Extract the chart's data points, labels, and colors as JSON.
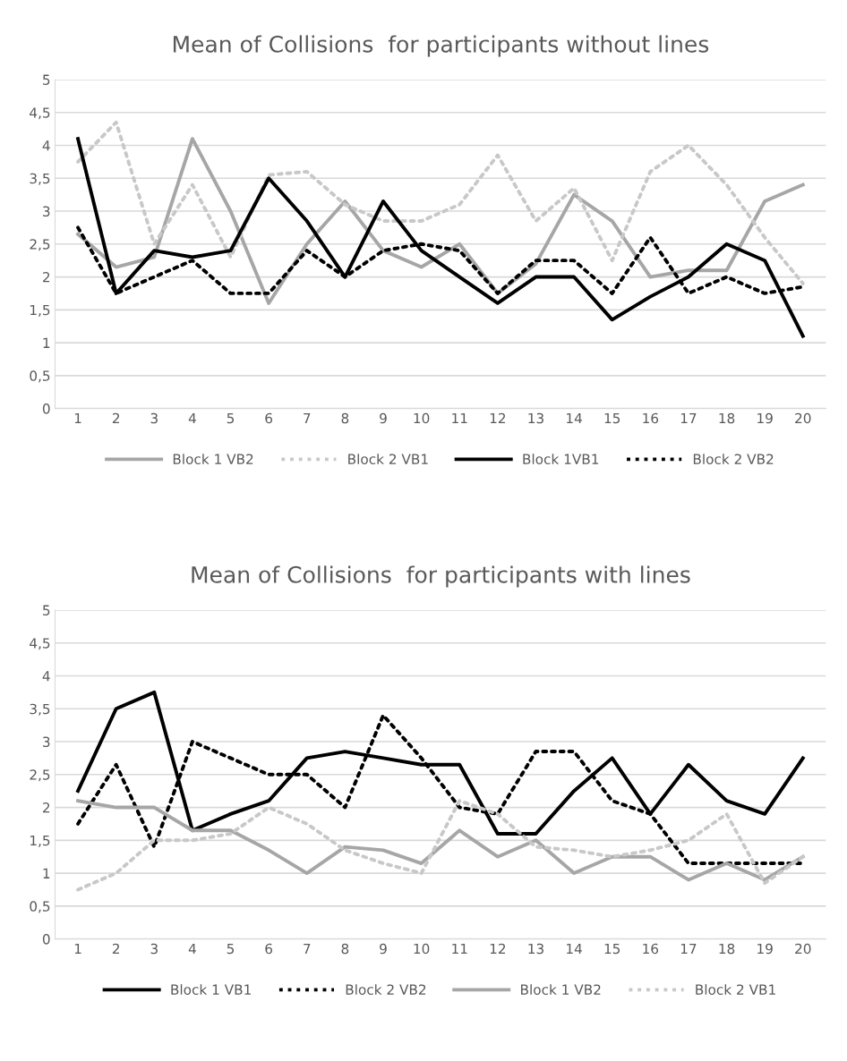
{
  "chart_data": [
    {
      "type": "line",
      "title": "Mean of Collisions  for participants without lines",
      "categories": [
        "1",
        "2",
        "3",
        "4",
        "5",
        "6",
        "7",
        "8",
        "9",
        "10",
        "11",
        "12",
        "13",
        "14",
        "15",
        "16",
        "17",
        "18",
        "19",
        "20"
      ],
      "series": [
        {
          "name": "Block 1 VB2",
          "color": "#a6a6a6",
          "line_style": "solid",
          "values": [
            2.65,
            2.15,
            2.3,
            4.1,
            3.0,
            1.6,
            2.5,
            3.15,
            2.4,
            2.15,
            2.5,
            1.75,
            2.2,
            3.25,
            2.85,
            2.0,
            2.1,
            2.1,
            3.15,
            3.4
          ]
        },
        {
          "name": "Block 2 VB1",
          "color": "#c8c8c8",
          "line_style": "dotted",
          "values": [
            3.75,
            4.35,
            2.5,
            3.4,
            2.3,
            3.55,
            3.6,
            3.1,
            2.85,
            2.85,
            3.1,
            3.85,
            2.85,
            3.35,
            2.25,
            3.6,
            4.0,
            3.4,
            2.6,
            1.9
          ]
        },
        {
          "name": "Block 1VB1",
          "color": "#000000",
          "line_style": "solid",
          "values": [
            4.1,
            1.75,
            2.4,
            2.3,
            2.4,
            3.5,
            2.85,
            2.0,
            3.15,
            2.4,
            2.0,
            1.6,
            2.0,
            2.0,
            1.35,
            1.7,
            2.0,
            2.5,
            2.25,
            1.1
          ]
        },
        {
          "name": "Block 2 VB2",
          "color": "#000000",
          "line_style": "dotted",
          "values": [
            2.75,
            1.75,
            2.0,
            2.25,
            1.75,
            1.75,
            2.4,
            2.0,
            2.4,
            2.5,
            2.4,
            1.75,
            2.25,
            2.25,
            1.75,
            2.6,
            1.75,
            2.0,
            1.75,
            1.85
          ]
        }
      ],
      "ylim": [
        0,
        5
      ],
      "yticks": [
        0,
        {
          "value": 0.5,
          "label": "0,5"
        },
        1,
        {
          "value": 1.5,
          "label": "1,5"
        },
        2,
        {
          "value": 2.5,
          "label": "2,5"
        },
        3,
        {
          "value": 3.5,
          "label": "3,5"
        },
        4,
        {
          "value": 4.5,
          "label": "4,5"
        },
        5
      ],
      "grid": "y",
      "legend": "bottom",
      "marker": "none"
    },
    {
      "type": "line",
      "title": "Mean of Collisions  for participants with lines",
      "categories": [
        "1",
        "2",
        "3",
        "4",
        "5",
        "6",
        "7",
        "8",
        "9",
        "10",
        "11",
        "12",
        "13",
        "14",
        "15",
        "16",
        "17",
        "18",
        "19",
        "20"
      ],
      "series": [
        {
          "name": "Block 1 VB1",
          "color": "#000000",
          "line_style": "solid",
          "values": [
            2.25,
            3.5,
            3.75,
            1.65,
            1.9,
            2.1,
            2.75,
            2.85,
            2.75,
            2.65,
            2.65,
            1.6,
            1.6,
            2.25,
            2.75,
            1.9,
            2.65,
            2.1,
            1.9,
            2.75
          ]
        },
        {
          "name": "Block 2 VB2",
          "color": "#000000",
          "line_style": "dotted",
          "values": [
            1.75,
            2.65,
            1.4,
            3.0,
            2.75,
            2.5,
            2.5,
            2.0,
            3.4,
            2.75,
            2.0,
            1.9,
            2.85,
            2.85,
            2.1,
            1.9,
            1.15,
            1.15,
            1.15,
            1.15
          ]
        },
        {
          "name": "Block 1 VB2",
          "color": "#a6a6a6",
          "line_style": "solid",
          "values": [
            2.1,
            2.0,
            2.0,
            1.65,
            1.65,
            1.35,
            1.0,
            1.4,
            1.35,
            1.15,
            1.65,
            1.25,
            1.5,
            1.0,
            1.25,
            1.25,
            0.9,
            1.15,
            0.9,
            1.25
          ]
        },
        {
          "name": "Block 2 VB1",
          "color": "#c8c8c8",
          "line_style": "dotted",
          "values": [
            0.75,
            1.0,
            1.5,
            1.5,
            1.6,
            2.0,
            1.75,
            1.35,
            1.15,
            1.0,
            2.1,
            1.9,
            1.4,
            1.35,
            1.25,
            1.35,
            1.5,
            1.9,
            0.85,
            1.25
          ]
        }
      ],
      "ylim": [
        0,
        5
      ],
      "yticks": [
        0,
        {
          "value": 0.5,
          "label": "0,5"
        },
        1,
        {
          "value": 1.5,
          "label": "1,5"
        },
        2,
        {
          "value": 2.5,
          "label": "2,5"
        },
        3,
        {
          "value": 3.5,
          "label": "3,5"
        },
        4,
        {
          "value": 4.5,
          "label": "4,5"
        },
        5
      ],
      "grid": "y",
      "legend": "bottom",
      "marker": "none"
    }
  ]
}
